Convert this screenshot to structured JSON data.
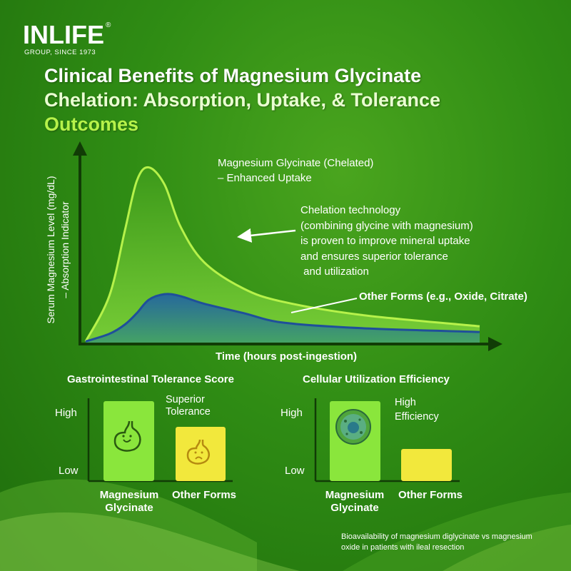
{
  "brand": {
    "logo_text": "INLIFE",
    "logo_reg": "®",
    "logo_sub": "GROUP, SINCE 1973"
  },
  "title_lines": [
    "Clinical Benefits of Magnesium Glycinate",
    "Chelation: Absorption, Uptake, & Tolerance",
    "Outcomes"
  ],
  "colors": {
    "background": "#2f8c14",
    "chelated_curve": "#b6f24a",
    "other_curve": "#1f5fa8",
    "bar_green": "#8ae63c",
    "bar_yellow": "#f2e83c",
    "title_accent": "#b6f24a"
  },
  "annotations": {
    "chelated_label": [
      "Magnesium Glycinate (Chelated)",
      "– Enhanced Uptake"
    ],
    "chelation_note": [
      "Chelation technology",
      "(combining glycine with magnesium)",
      "is proven to improve mineral uptake",
      "and ensures superior tolerance",
      " and utilization"
    ],
    "other_label": "Other Forms (e.g., Oxide, Citrate)"
  },
  "footnote": [
    "Bioavailability of magnesium diglycinate vs magnesium",
    "oxide in patients with ileal resection"
  ],
  "chart_data": [
    {
      "type": "area",
      "title": "",
      "xlabel": "Time (hours post-ingestion)",
      "ylabel": [
        "Serum Magnesium Level (mg/dL)",
        "– Absorption Indicator"
      ],
      "xlim": [
        0,
        10
      ],
      "ylim": [
        0,
        10
      ],
      "grid": false,
      "x": [
        0,
        0.6,
        1.0,
        1.3,
        1.6,
        2.0,
        2.4,
        3.0,
        4.0,
        5.0,
        7.0,
        10.0
      ],
      "series": [
        {
          "name": "Magnesium Glycinate (Chelated)",
          "values": [
            0.1,
            2.5,
            6.0,
            8.6,
            9.3,
            8.4,
            6.2,
            4.3,
            2.9,
            2.2,
            1.5,
            0.9
          ]
        },
        {
          "name": "Other Forms (e.g., Oxide, Citrate)",
          "values": [
            0.1,
            0.5,
            1.0,
            1.6,
            2.3,
            2.6,
            2.5,
            2.1,
            1.6,
            1.1,
            0.8,
            0.6
          ]
        }
      ]
    },
    {
      "type": "bar",
      "title": "Gastrointestinal Tolerance Score",
      "ytick_labels": [
        "High",
        "Low"
      ],
      "categories": [
        "Magnesium Glycinate",
        "Other Forms"
      ],
      "values": [
        1.0,
        0.68
      ],
      "bar_note": "Superior Tolerance",
      "icons": [
        "happy-stomach-icon",
        "sad-stomach-icon"
      ]
    },
    {
      "type": "bar",
      "title": "Cellular Utilization Efficiency",
      "ytick_labels": [
        "High",
        "Low"
      ],
      "categories": [
        "Magnesium Glycinate",
        "Other Forms"
      ],
      "values": [
        1.0,
        0.4
      ],
      "bar_note": "High Efficiency",
      "icons": [
        "cell-icon",
        ""
      ]
    }
  ]
}
